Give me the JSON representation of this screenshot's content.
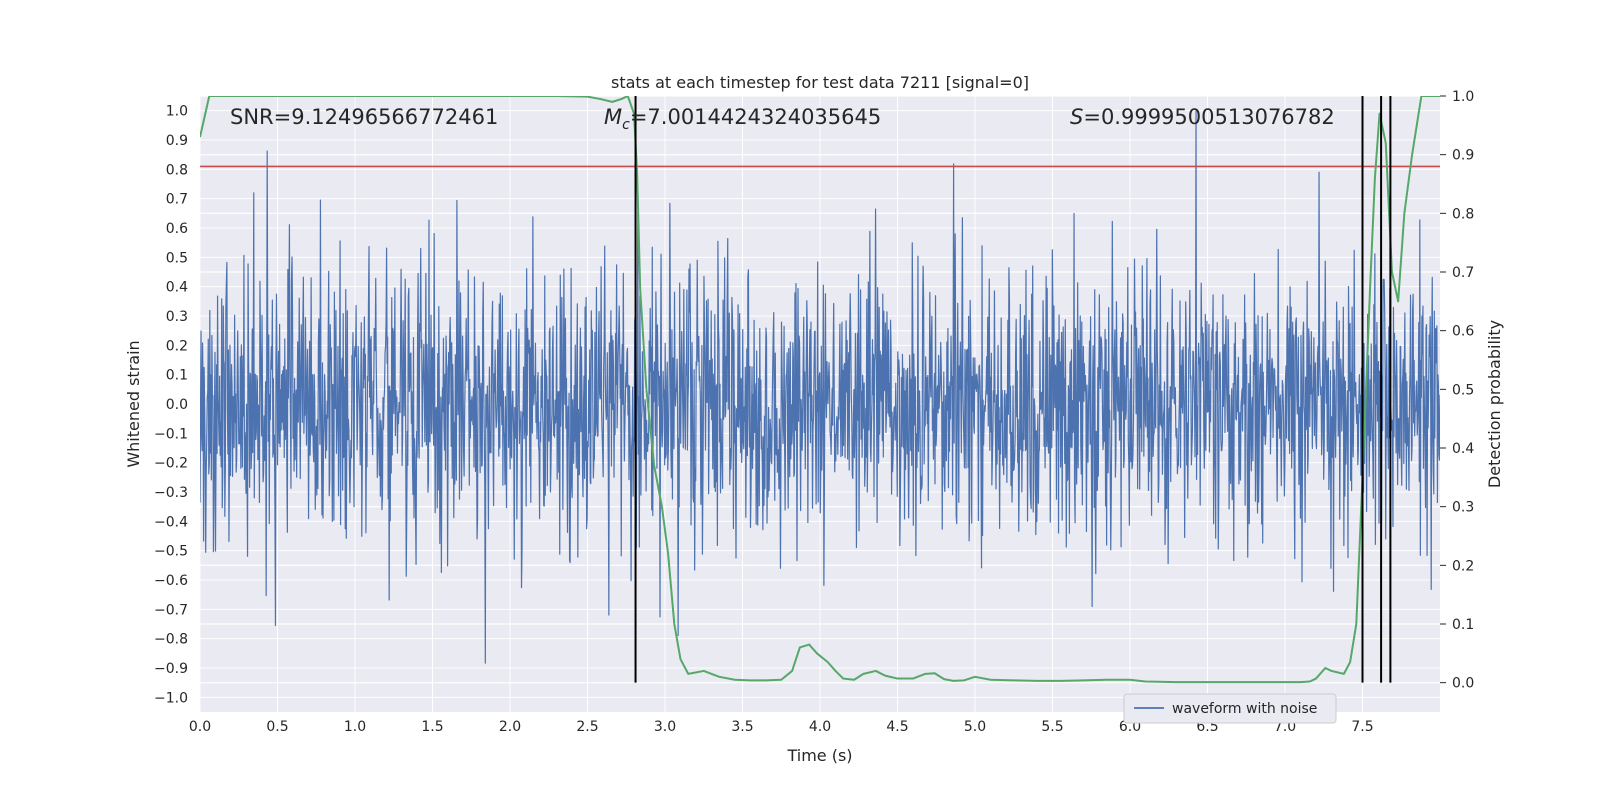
{
  "chart_data": {
    "type": "line",
    "title": "stats at each timestep for test data 7211 [signal=0]",
    "xlabel": "Time (s)",
    "ylabel_left": "Whitened strain",
    "ylabel_right": "Detection probability",
    "xlim": [
      0.0,
      8.0
    ],
    "ylim_left": [
      -1.05,
      1.05
    ],
    "ylim_right": [
      -0.05,
      1.0
    ],
    "grid": true,
    "legend_position": "lower-right",
    "x_ticks": [
      "0.0",
      "0.5",
      "1.0",
      "1.5",
      "2.0",
      "2.5",
      "3.0",
      "3.5",
      "4.0",
      "4.5",
      "5.0",
      "5.5",
      "6.0",
      "6.5",
      "7.0",
      "7.5"
    ],
    "y_ticks_left": [
      "1.0",
      "0.9",
      "0.8",
      "0.7",
      "0.6",
      "0.5",
      "0.4",
      "0.3",
      "0.2",
      "0.1",
      "0.0",
      "-0.1",
      "-0.2",
      "-0.3",
      "-0.4",
      "-0.5",
      "-0.6",
      "-0.7",
      "-0.8",
      "-0.9",
      "-1.0"
    ],
    "y_ticks_right": [
      "1.0",
      "0.9",
      "0.8",
      "0.7",
      "0.6",
      "0.5",
      "0.4",
      "0.3",
      "0.2",
      "0.1",
      "0.0"
    ],
    "annotations": {
      "snr": "SNR=9.12496566772461",
      "mc_symbol": "M",
      "mc_sub": "c",
      "mc_value": "=7.0014424324035645",
      "s_symbol": "S",
      "s_value": "=0.9999500513076782"
    },
    "legend": [
      "waveform with noise"
    ],
    "threshold_strain": 0.81,
    "vertical_markers_time": [
      2.81,
      7.5,
      7.62,
      7.68
    ],
    "series": [
      {
        "name": "waveform with noise",
        "axis": "left",
        "color": "#4c72b0",
        "generator": "noise",
        "duration": 8.0,
        "seed": 7211
      },
      {
        "axis": "right",
        "color": "#55a868",
        "x": [
          0.0,
          0.06,
          0.3,
          0.6,
          1.0,
          1.5,
          2.0,
          2.3,
          2.5,
          2.58,
          2.66,
          2.72,
          2.76,
          2.8,
          2.82,
          2.84,
          2.88,
          2.93,
          2.98,
          3.02,
          3.06,
          3.1,
          3.15,
          3.25,
          3.35,
          3.45,
          3.55,
          3.65,
          3.75,
          3.82,
          3.87,
          3.93,
          3.98,
          4.05,
          4.1,
          4.15,
          4.22,
          4.28,
          4.36,
          4.42,
          4.5,
          4.6,
          4.68,
          4.74,
          4.8,
          4.86,
          4.93,
          5.0,
          5.1,
          5.25,
          5.4,
          5.55,
          5.7,
          5.85,
          6.0,
          6.1,
          6.3,
          6.5,
          6.7,
          6.9,
          7.0,
          7.1,
          7.16,
          7.2,
          7.26,
          7.3,
          7.38,
          7.42,
          7.46,
          7.5,
          7.55,
          7.58,
          7.61,
          7.65,
          7.69,
          7.73,
          7.77,
          7.82,
          7.88,
          7.92,
          7.96,
          8.0
        ],
        "values": [
          0.93,
          1.0,
          1.0,
          1.0,
          1.0,
          1.0,
          1.0,
          1.0,
          0.999,
          0.995,
          0.99,
          0.995,
          1.0,
          0.97,
          0.87,
          0.67,
          0.5,
          0.37,
          0.3,
          0.22,
          0.1,
          0.04,
          0.015,
          0.02,
          0.01,
          0.005,
          0.004,
          0.004,
          0.005,
          0.02,
          0.06,
          0.065,
          0.05,
          0.035,
          0.02,
          0.007,
          0.005,
          0.015,
          0.02,
          0.012,
          0.007,
          0.007,
          0.015,
          0.016,
          0.006,
          0.003,
          0.004,
          0.01,
          0.005,
          0.004,
          0.003,
          0.003,
          0.004,
          0.005,
          0.005,
          0.002,
          0.001,
          0.001,
          0.001,
          0.001,
          0.001,
          0.001,
          0.002,
          0.007,
          0.025,
          0.02,
          0.015,
          0.035,
          0.1,
          0.35,
          0.68,
          0.86,
          0.97,
          0.92,
          0.7,
          0.65,
          0.8,
          0.9,
          1.0,
          1.0,
          1.0,
          1.0
        ]
      }
    ]
  },
  "colors": {
    "background": "#eaeaf2",
    "grid": "#ffffff",
    "threshold": "#c44e52",
    "markers": "#000000"
  }
}
